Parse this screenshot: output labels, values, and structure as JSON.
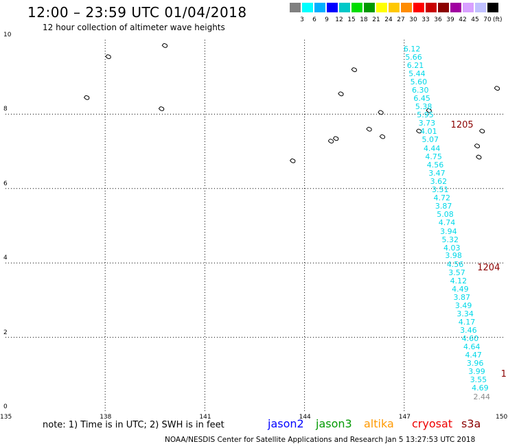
{
  "header": {
    "title": "12:00 – 23:59 UTC 01/04/2018",
    "subtitle": "12 hour collection of altimeter wave heights"
  },
  "legend": {
    "colors": [
      "#808080",
      "#00ffff",
      "#00b0ff",
      "#0000ff",
      "#00c8c8",
      "#00dd00",
      "#009900",
      "#ffff00",
      "#ffc800",
      "#ff8c00",
      "#ff0000",
      "#c80000",
      "#8b0000",
      "#a000a0",
      "#d8a0ff",
      "#c0c0ff",
      "#000000"
    ],
    "labels": [
      "3",
      "6",
      "9",
      "12",
      "15",
      "18",
      "21",
      "24",
      "27",
      "30",
      "33",
      "36",
      "39",
      "42",
      "45",
      "70"
    ],
    "unit": "(ft)"
  },
  "axes": {
    "x_ticks": [
      "135",
      "138",
      "141",
      "144",
      "147",
      "150"
    ],
    "y_ticks": [
      "0",
      "2",
      "4",
      "6",
      "8",
      "10"
    ],
    "x_range": [
      135,
      150
    ],
    "y_range": [
      0,
      10
    ]
  },
  "tracks": [
    {
      "label": "1205",
      "label_position": {
        "lon": 148.4,
        "lat": 7.7
      },
      "points": [
        {
          "lon": 147.25,
          "lat": 9.75,
          "value": "6.12"
        },
        {
          "lon": 147.3,
          "lat": 9.52,
          "value": "5.66"
        },
        {
          "lon": 147.35,
          "lat": 9.3,
          "value": "6.21"
        },
        {
          "lon": 147.4,
          "lat": 9.08,
          "value": "5.44"
        },
        {
          "lon": 147.45,
          "lat": 8.86,
          "value": "5.60"
        },
        {
          "lon": 147.5,
          "lat": 8.64,
          "value": "6.30"
        },
        {
          "lon": 147.55,
          "lat": 8.41,
          "value": "6.45"
        },
        {
          "lon": 147.6,
          "lat": 8.19,
          "value": "5.38"
        },
        {
          "lon": 147.65,
          "lat": 7.97,
          "value": "5.95"
        },
        {
          "lon": 147.7,
          "lat": 7.75,
          "value": "3.73"
        },
        {
          "lon": 147.75,
          "lat": 7.52,
          "value": "4.01"
        },
        {
          "lon": 147.8,
          "lat": 7.3,
          "value": "5.07"
        },
        {
          "lon": 147.85,
          "lat": 7.07,
          "value": "4.44"
        },
        {
          "lon": 147.9,
          "lat": 6.85,
          "value": "4.75"
        },
        {
          "lon": 147.95,
          "lat": 6.63,
          "value": "4.56"
        },
        {
          "lon": 148.0,
          "lat": 6.41,
          "value": "3.47"
        },
        {
          "lon": 148.05,
          "lat": 6.18,
          "value": "3.62"
        },
        {
          "lon": 148.1,
          "lat": 5.96,
          "value": "3.51"
        }
      ]
    },
    {
      "label": "1204",
      "label_position": {
        "lon": 149.2,
        "lat": 3.85
      },
      "points": [
        {
          "lon": 148.15,
          "lat": 5.73,
          "value": "4.72"
        },
        {
          "lon": 148.2,
          "lat": 5.51,
          "value": "3.87"
        },
        {
          "lon": 148.25,
          "lat": 5.29,
          "value": "5.08"
        },
        {
          "lon": 148.3,
          "lat": 5.07,
          "value": "4.74"
        },
        {
          "lon": 148.35,
          "lat": 4.84,
          "value": "3.94"
        },
        {
          "lon": 148.4,
          "lat": 4.62,
          "value": "5.32"
        },
        {
          "lon": 148.45,
          "lat": 4.4,
          "value": "4.03"
        },
        {
          "lon": 148.5,
          "lat": 4.18,
          "value": "3.98"
        },
        {
          "lon": 148.55,
          "lat": 3.95,
          "value": "4.56"
        },
        {
          "lon": 148.6,
          "lat": 3.73,
          "value": "3.57"
        },
        {
          "lon": 148.65,
          "lat": 3.51,
          "value": "4.12"
        },
        {
          "lon": 148.7,
          "lat": 3.29,
          "value": "4.49"
        },
        {
          "lon": 148.75,
          "lat": 3.07,
          "value": "3.87"
        },
        {
          "lon": 148.8,
          "lat": 2.85,
          "value": "3.49"
        },
        {
          "lon": 148.85,
          "lat": 2.62,
          "value": "3.34"
        },
        {
          "lon": 148.9,
          "lat": 2.4,
          "value": "4.17"
        },
        {
          "lon": 148.95,
          "lat": 2.18,
          "value": "3.46"
        },
        {
          "lon": 149.0,
          "lat": 1.96,
          "value": "4.60"
        },
        {
          "lon": 149.05,
          "lat": 1.74,
          "value": "4.64"
        },
        {
          "lon": 149.1,
          "lat": 1.51,
          "value": "4.47"
        },
        {
          "lon": 149.15,
          "lat": 1.29,
          "value": "3.96"
        },
        {
          "lon": 149.2,
          "lat": 1.07,
          "value": "3.99"
        },
        {
          "lon": 149.25,
          "lat": 0.85,
          "value": "3.55"
        },
        {
          "lon": 149.3,
          "lat": 0.62,
          "value": "4.69"
        },
        {
          "lon": 149.35,
          "lat": 0.38,
          "value": "2.44",
          "gray": true
        }
      ]
    }
  ],
  "edge_label": {
    "text": "1",
    "lon": 149.95,
    "lat": 1.0
  },
  "islands": [
    {
      "lon": 138.1,
      "lat": 9.55
    },
    {
      "lon": 139.8,
      "lat": 9.85
    },
    {
      "lon": 137.45,
      "lat": 8.45
    },
    {
      "lon": 139.7,
      "lat": 8.15
    },
    {
      "lon": 145.5,
      "lat": 9.2
    },
    {
      "lon": 145.1,
      "lat": 8.55
    },
    {
      "lon": 146.3,
      "lat": 8.05
    },
    {
      "lon": 147.75,
      "lat": 8.1
    },
    {
      "lon": 145.95,
      "lat": 7.6
    },
    {
      "lon": 146.35,
      "lat": 7.4
    },
    {
      "lon": 144.95,
      "lat": 7.35
    },
    {
      "lon": 144.8,
      "lat": 7.28
    },
    {
      "lon": 143.65,
      "lat": 6.75
    },
    {
      "lon": 147.45,
      "lat": 7.55
    },
    {
      "lon": 149.35,
      "lat": 7.55
    },
    {
      "lon": 149.2,
      "lat": 7.15
    },
    {
      "lon": 149.25,
      "lat": 6.85
    },
    {
      "lon": 149.8,
      "lat": 8.7
    }
  ],
  "footer": {
    "note": "note: 1) Time is in UTC; 2) SWH is in feet",
    "satellites": [
      {
        "name": "jason2",
        "color": "#0000ff"
      },
      {
        "name": "jason3",
        "color": "#009900"
      },
      {
        "name": "altika",
        "color": "#ff9900"
      },
      {
        "name": "cryosat",
        "color": "#ee0000"
      },
      {
        "name": "s3a",
        "color": "#8b0000"
      }
    ],
    "credit": "NOAA/NESDIS Center for Satellite Applications and Research    Jan  5 13:27:53 UTC 2018"
  }
}
